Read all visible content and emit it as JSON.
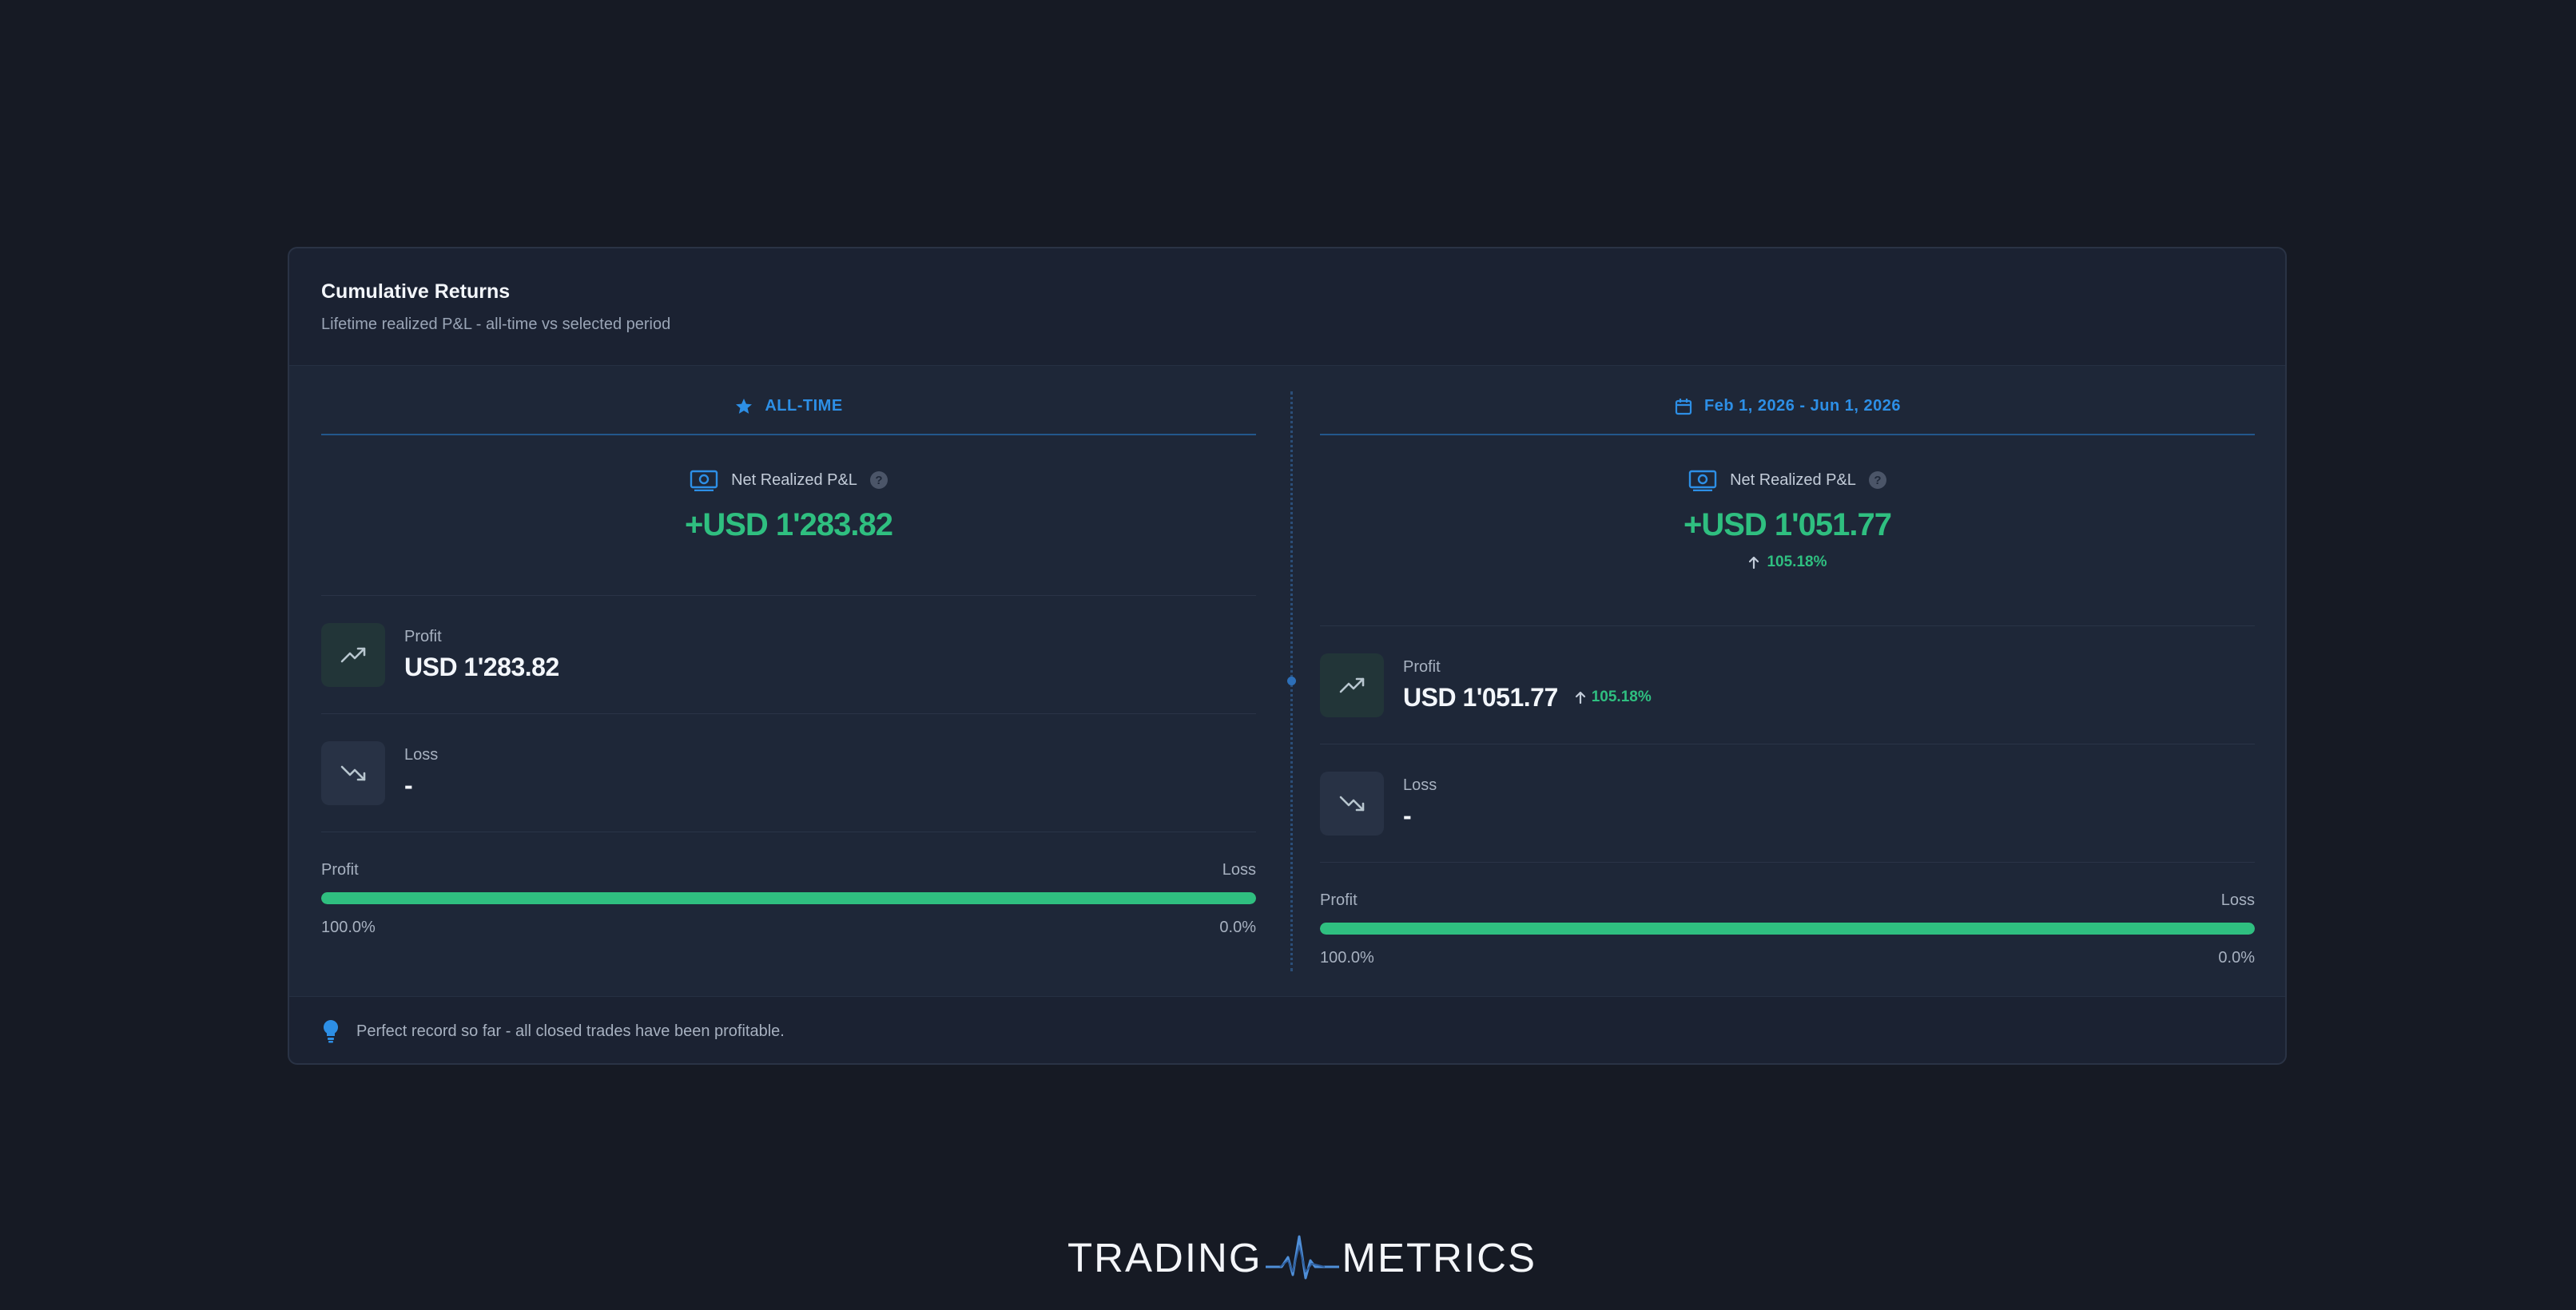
{
  "card": {
    "title": "Cumulative Returns",
    "subtitle": "Lifetime realized P&L - all-time vs selected period"
  },
  "columns": [
    {
      "header": "ALL-TIME",
      "header_icon": "star-icon",
      "net_label": "Net Realized P&L",
      "net_value": "+USD 1'283.82",
      "profit_label": "Profit",
      "profit_value": "USD 1'283.82",
      "loss_label": "Loss",
      "loss_value": "-",
      "bar_left_label": "Profit",
      "bar_right_label": "Loss",
      "bar_left_pct": "100.0%",
      "bar_right_pct": "0.0%",
      "profit_share": 1.0
    },
    {
      "header": "Feb 1, 2026 - Jun 1, 2026",
      "header_icon": "calendar-icon",
      "net_label": "Net Realized P&L",
      "net_value": "+USD 1'051.77",
      "net_change": "105.18%",
      "profit_label": "Profit",
      "profit_value": "USD 1'051.77",
      "profit_change": "105.18%",
      "loss_label": "Loss",
      "loss_value": "-",
      "bar_left_label": "Profit",
      "bar_right_label": "Loss",
      "bar_left_pct": "100.0%",
      "bar_right_pct": "0.0%",
      "profit_share": 1.0
    }
  ],
  "footer": {
    "icon": "lightbulb-icon",
    "text": "Perfect record so far - all closed trades have been profitable."
  },
  "brand": {
    "left": "TRADING",
    "right": "METRICS"
  },
  "colors": {
    "accent_blue": "#2d8fe6",
    "positive_green": "#2fbf80",
    "background": "#161a24",
    "card": "#1b2232"
  }
}
